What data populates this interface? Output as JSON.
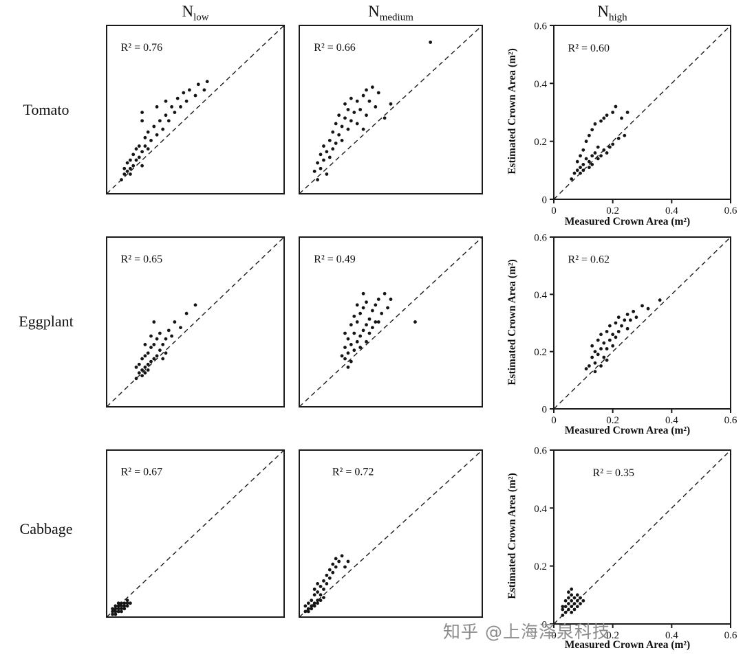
{
  "figure": {
    "watermark": "知乎 @上海泽泉科技"
  },
  "columns": [
    {
      "main": "N",
      "sub": "low"
    },
    {
      "main": "N",
      "sub": "medium"
    },
    {
      "main": "N",
      "sub": "high"
    }
  ],
  "rows": [
    {
      "label": "Tomato"
    },
    {
      "label": "Eggplant"
    },
    {
      "label": "Cabbage"
    }
  ],
  "axis": {
    "x_label": "Measured Crown Area (m²)",
    "y_label": "Estimated Crown Area (m²)",
    "ticks": [
      "0",
      "0.2",
      "0.4",
      "0.6"
    ],
    "range": [
      0,
      0.6
    ]
  },
  "chart_data": [
    {
      "type": "scatter",
      "crop": "Tomato",
      "nitrogen": "N_low",
      "r2": 0.76,
      "r2_label": "R² = 0.76",
      "xlim": [
        0,
        0.6
      ],
      "ylim": [
        0,
        0.6
      ],
      "identity_line": "dashed 1:1",
      "points": [
        [
          0.05,
          0.05
        ],
        [
          0.06,
          0.07
        ],
        [
          0.06,
          0.09
        ],
        [
          0.07,
          0.08
        ],
        [
          0.07,
          0.11
        ],
        [
          0.08,
          0.09
        ],
        [
          0.08,
          0.12
        ],
        [
          0.09,
          0.1
        ],
        [
          0.09,
          0.14
        ],
        [
          0.1,
          0.12
        ],
        [
          0.1,
          0.16
        ],
        [
          0.11,
          0.13
        ],
        [
          0.11,
          0.17
        ],
        [
          0.12,
          0.15
        ],
        [
          0.12,
          0.26
        ],
        [
          0.13,
          0.17
        ],
        [
          0.13,
          0.2
        ],
        [
          0.14,
          0.16
        ],
        [
          0.14,
          0.22
        ],
        [
          0.15,
          0.19
        ],
        [
          0.16,
          0.24
        ],
        [
          0.17,
          0.21
        ],
        [
          0.17,
          0.31
        ],
        [
          0.18,
          0.26
        ],
        [
          0.19,
          0.23
        ],
        [
          0.2,
          0.28
        ],
        [
          0.2,
          0.33
        ],
        [
          0.21,
          0.26
        ],
        [
          0.22,
          0.31
        ],
        [
          0.23,
          0.29
        ],
        [
          0.24,
          0.34
        ],
        [
          0.25,
          0.31
        ],
        [
          0.26,
          0.36
        ],
        [
          0.27,
          0.33
        ],
        [
          0.28,
          0.37
        ],
        [
          0.3,
          0.35
        ],
        [
          0.31,
          0.39
        ],
        [
          0.33,
          0.37
        ],
        [
          0.34,
          0.4
        ],
        [
          0.12,
          0.1
        ],
        [
          0.12,
          0.29
        ],
        [
          0.08,
          0.07
        ]
      ]
    },
    {
      "type": "scatter",
      "crop": "Tomato",
      "nitrogen": "N_medium",
      "r2": 0.66,
      "r2_label": "R² = 0.66",
      "xlim": [
        0,
        0.6
      ],
      "ylim": [
        0,
        0.6
      ],
      "identity_line": "dashed 1:1",
      "points": [
        [
          0.05,
          0.08
        ],
        [
          0.06,
          0.11
        ],
        [
          0.07,
          0.09
        ],
        [
          0.07,
          0.14
        ],
        [
          0.08,
          0.12
        ],
        [
          0.08,
          0.17
        ],
        [
          0.09,
          0.15
        ],
        [
          0.1,
          0.13
        ],
        [
          0.1,
          0.19
        ],
        [
          0.11,
          0.16
        ],
        [
          0.11,
          0.22
        ],
        [
          0.12,
          0.18
        ],
        [
          0.12,
          0.25
        ],
        [
          0.13,
          0.21
        ],
        [
          0.13,
          0.28
        ],
        [
          0.14,
          0.19
        ],
        [
          0.14,
          0.24
        ],
        [
          0.15,
          0.27
        ],
        [
          0.15,
          0.32
        ],
        [
          0.16,
          0.23
        ],
        [
          0.16,
          0.3
        ],
        [
          0.17,
          0.26
        ],
        [
          0.17,
          0.34
        ],
        [
          0.18,
          0.29
        ],
        [
          0.19,
          0.25
        ],
        [
          0.19,
          0.33
        ],
        [
          0.2,
          0.3
        ],
        [
          0.21,
          0.35
        ],
        [
          0.22,
          0.28
        ],
        [
          0.22,
          0.37
        ],
        [
          0.23,
          0.33
        ],
        [
          0.24,
          0.38
        ],
        [
          0.25,
          0.31
        ],
        [
          0.26,
          0.36
        ],
        [
          0.28,
          0.27
        ],
        [
          0.3,
          0.32
        ],
        [
          0.43,
          0.54
        ],
        [
          0.09,
          0.07
        ],
        [
          0.06,
          0.05
        ],
        [
          0.21,
          0.23
        ]
      ]
    },
    {
      "type": "scatter",
      "crop": "Tomato",
      "nitrogen": "N_high",
      "r2": 0.6,
      "r2_label": "R² = 0.60",
      "xlim": [
        0,
        0.6
      ],
      "ylim": [
        0,
        0.6
      ],
      "identity_line": "dashed 1:1",
      "points": [
        [
          0.06,
          0.07
        ],
        [
          0.07,
          0.09
        ],
        [
          0.08,
          0.1
        ],
        [
          0.08,
          0.13
        ],
        [
          0.09,
          0.11
        ],
        [
          0.09,
          0.15
        ],
        [
          0.1,
          0.12
        ],
        [
          0.1,
          0.17
        ],
        [
          0.11,
          0.14
        ],
        [
          0.11,
          0.2
        ],
        [
          0.12,
          0.13
        ],
        [
          0.12,
          0.22
        ],
        [
          0.13,
          0.15
        ],
        [
          0.13,
          0.24
        ],
        [
          0.14,
          0.16
        ],
        [
          0.14,
          0.26
        ],
        [
          0.15,
          0.14
        ],
        [
          0.15,
          0.18
        ],
        [
          0.16,
          0.27
        ],
        [
          0.16,
          0.15
        ],
        [
          0.17,
          0.17
        ],
        [
          0.17,
          0.28
        ],
        [
          0.18,
          0.16
        ],
        [
          0.18,
          0.29
        ],
        [
          0.19,
          0.18
        ],
        [
          0.2,
          0.3
        ],
        [
          0.2,
          0.19
        ],
        [
          0.21,
          0.32
        ],
        [
          0.22,
          0.21
        ],
        [
          0.23,
          0.28
        ],
        [
          0.24,
          0.22
        ],
        [
          0.25,
          0.3
        ],
        [
          0.13,
          0.12
        ],
        [
          0.12,
          0.11
        ],
        [
          0.1,
          0.1
        ],
        [
          0.09,
          0.09
        ]
      ]
    },
    {
      "type": "scatter",
      "crop": "Eggplant",
      "nitrogen": "N_low",
      "r2": 0.65,
      "r2_label": "R² = 0.65",
      "xlim": [
        0,
        0.6
      ],
      "ylim": [
        0,
        0.6
      ],
      "identity_line": "dashed 1:1",
      "points": [
        [
          0.1,
          0.1
        ],
        [
          0.11,
          0.12
        ],
        [
          0.11,
          0.15
        ],
        [
          0.12,
          0.13
        ],
        [
          0.12,
          0.17
        ],
        [
          0.13,
          0.14
        ],
        [
          0.13,
          0.18
        ],
        [
          0.13,
          0.22
        ],
        [
          0.14,
          0.15
        ],
        [
          0.14,
          0.19
        ],
        [
          0.15,
          0.16
        ],
        [
          0.15,
          0.21
        ],
        [
          0.15,
          0.25
        ],
        [
          0.16,
          0.17
        ],
        [
          0.16,
          0.22
        ],
        [
          0.17,
          0.18
        ],
        [
          0.17,
          0.24
        ],
        [
          0.18,
          0.2
        ],
        [
          0.18,
          0.26
        ],
        [
          0.19,
          0.22
        ],
        [
          0.2,
          0.24
        ],
        [
          0.21,
          0.27
        ],
        [
          0.22,
          0.25
        ],
        [
          0.23,
          0.3
        ],
        [
          0.25,
          0.28
        ],
        [
          0.27,
          0.33
        ],
        [
          0.3,
          0.36
        ],
        [
          0.14,
          0.13
        ],
        [
          0.13,
          0.12
        ],
        [
          0.12,
          0.11
        ],
        [
          0.16,
          0.3
        ],
        [
          0.1,
          0.14
        ],
        [
          0.19,
          0.17
        ],
        [
          0.2,
          0.19
        ]
      ]
    },
    {
      "type": "scatter",
      "crop": "Eggplant",
      "nitrogen": "N_medium",
      "r2": 0.49,
      "r2_label": "R² = 0.49",
      "xlim": [
        0,
        0.6
      ],
      "ylim": [
        0,
        0.6
      ],
      "identity_line": "dashed 1:1",
      "points": [
        [
          0.14,
          0.18
        ],
        [
          0.15,
          0.21
        ],
        [
          0.15,
          0.26
        ],
        [
          0.16,
          0.19
        ],
        [
          0.16,
          0.24
        ],
        [
          0.17,
          0.22
        ],
        [
          0.17,
          0.29
        ],
        [
          0.18,
          0.2
        ],
        [
          0.18,
          0.26
        ],
        [
          0.18,
          0.32
        ],
        [
          0.19,
          0.23
        ],
        [
          0.19,
          0.3
        ],
        [
          0.2,
          0.25
        ],
        [
          0.2,
          0.33
        ],
        [
          0.21,
          0.27
        ],
        [
          0.21,
          0.35
        ],
        [
          0.22,
          0.29
        ],
        [
          0.22,
          0.37
        ],
        [
          0.23,
          0.31
        ],
        [
          0.23,
          0.26
        ],
        [
          0.24,
          0.34
        ],
        [
          0.24,
          0.28
        ],
        [
          0.25,
          0.36
        ],
        [
          0.25,
          0.3
        ],
        [
          0.26,
          0.38
        ],
        [
          0.27,
          0.33
        ],
        [
          0.28,
          0.4
        ],
        [
          0.29,
          0.35
        ],
        [
          0.3,
          0.38
        ],
        [
          0.17,
          0.16
        ],
        [
          0.16,
          0.14
        ],
        [
          0.38,
          0.3
        ],
        [
          0.2,
          0.21
        ],
        [
          0.22,
          0.23
        ],
        [
          0.26,
          0.3
        ],
        [
          0.15,
          0.17
        ],
        [
          0.19,
          0.36
        ],
        [
          0.21,
          0.4
        ]
      ]
    },
    {
      "type": "scatter",
      "crop": "Eggplant",
      "nitrogen": "N_high",
      "r2": 0.62,
      "r2_label": "R² = 0.62",
      "xlim": [
        0,
        0.6
      ],
      "ylim": [
        0,
        0.6
      ],
      "identity_line": "dashed 1:1",
      "points": [
        [
          0.12,
          0.15
        ],
        [
          0.13,
          0.18
        ],
        [
          0.13,
          0.22
        ],
        [
          0.14,
          0.16
        ],
        [
          0.14,
          0.2
        ],
        [
          0.15,
          0.19
        ],
        [
          0.15,
          0.24
        ],
        [
          0.16,
          0.21
        ],
        [
          0.16,
          0.26
        ],
        [
          0.17,
          0.18
        ],
        [
          0.17,
          0.23
        ],
        [
          0.18,
          0.21
        ],
        [
          0.18,
          0.27
        ],
        [
          0.19,
          0.24
        ],
        [
          0.19,
          0.29
        ],
        [
          0.2,
          0.22
        ],
        [
          0.2,
          0.26
        ],
        [
          0.21,
          0.25
        ],
        [
          0.21,
          0.3
        ],
        [
          0.22,
          0.27
        ],
        [
          0.22,
          0.32
        ],
        [
          0.23,
          0.29
        ],
        [
          0.24,
          0.31
        ],
        [
          0.25,
          0.28
        ],
        [
          0.25,
          0.33
        ],
        [
          0.26,
          0.31
        ],
        [
          0.27,
          0.34
        ],
        [
          0.28,
          0.32
        ],
        [
          0.3,
          0.36
        ],
        [
          0.32,
          0.35
        ],
        [
          0.14,
          0.13
        ],
        [
          0.16,
          0.15
        ],
        [
          0.36,
          0.38
        ],
        [
          0.11,
          0.14
        ],
        [
          0.18,
          0.17
        ]
      ]
    },
    {
      "type": "scatter",
      "crop": "Cabbage",
      "nitrogen": "N_low",
      "r2": 0.67,
      "r2_label": "R² = 0.67",
      "xlim": [
        0,
        0.6
      ],
      "ylim": [
        0,
        0.6
      ],
      "identity_line": "dashed 1:1",
      "points": [
        [
          0.02,
          0.01
        ],
        [
          0.02,
          0.02
        ],
        [
          0.03,
          0.02
        ],
        [
          0.03,
          0.03
        ],
        [
          0.03,
          0.01
        ],
        [
          0.04,
          0.02
        ],
        [
          0.04,
          0.03
        ],
        [
          0.04,
          0.04
        ],
        [
          0.05,
          0.03
        ],
        [
          0.05,
          0.04
        ],
        [
          0.05,
          0.02
        ],
        [
          0.06,
          0.04
        ],
        [
          0.06,
          0.05
        ],
        [
          0.06,
          0.03
        ],
        [
          0.07,
          0.05
        ],
        [
          0.07,
          0.04
        ],
        [
          0.02,
          0.03
        ],
        [
          0.03,
          0.04
        ],
        [
          0.04,
          0.05
        ],
        [
          0.05,
          0.05
        ],
        [
          0.08,
          0.05
        ],
        [
          0.07,
          0.06
        ]
      ]
    },
    {
      "type": "scatter",
      "crop": "Cabbage",
      "nitrogen": "N_medium",
      "r2": 0.72,
      "r2_label": "R² = 0.72",
      "r2_fx": 0.18,
      "xlim": [
        0,
        0.6
      ],
      "ylim": [
        0,
        0.6
      ],
      "identity_line": "dashed 1:1",
      "points": [
        [
          0.02,
          0.02
        ],
        [
          0.03,
          0.03
        ],
        [
          0.03,
          0.05
        ],
        [
          0.04,
          0.04
        ],
        [
          0.04,
          0.06
        ],
        [
          0.05,
          0.05
        ],
        [
          0.05,
          0.08
        ],
        [
          0.06,
          0.06
        ],
        [
          0.06,
          0.09
        ],
        [
          0.07,
          0.08
        ],
        [
          0.07,
          0.11
        ],
        [
          0.08,
          0.1
        ],
        [
          0.08,
          0.13
        ],
        [
          0.09,
          0.12
        ],
        [
          0.09,
          0.15
        ],
        [
          0.1,
          0.14
        ],
        [
          0.1,
          0.17
        ],
        [
          0.11,
          0.16
        ],
        [
          0.11,
          0.19
        ],
        [
          0.12,
          0.18
        ],
        [
          0.12,
          0.21
        ],
        [
          0.13,
          0.2
        ],
        [
          0.14,
          0.22
        ],
        [
          0.02,
          0.04
        ],
        [
          0.03,
          0.02
        ],
        [
          0.04,
          0.03
        ],
        [
          0.05,
          0.04
        ],
        [
          0.06,
          0.05
        ],
        [
          0.07,
          0.06
        ],
        [
          0.08,
          0.07
        ],
        [
          0.15,
          0.18
        ],
        [
          0.16,
          0.2
        ],
        [
          0.05,
          0.1
        ],
        [
          0.06,
          0.12
        ]
      ]
    },
    {
      "type": "scatter",
      "crop": "Cabbage",
      "nitrogen": "N_high",
      "r2": 0.35,
      "r2_label": "R² = 0.35",
      "r2_fx": 0.22,
      "xlim": [
        0,
        0.6
      ],
      "ylim": [
        0,
        0.6
      ],
      "identity_line": "dashed 1:1",
      "points": [
        [
          0.03,
          0.03
        ],
        [
          0.03,
          0.05
        ],
        [
          0.04,
          0.04
        ],
        [
          0.04,
          0.06
        ],
        [
          0.05,
          0.05
        ],
        [
          0.05,
          0.07
        ],
        [
          0.05,
          0.09
        ],
        [
          0.06,
          0.06
        ],
        [
          0.06,
          0.08
        ],
        [
          0.06,
          0.1
        ],
        [
          0.07,
          0.07
        ],
        [
          0.07,
          0.09
        ],
        [
          0.08,
          0.08
        ],
        [
          0.08,
          0.1
        ],
        [
          0.09,
          0.09
        ],
        [
          0.04,
          0.08
        ],
        [
          0.05,
          0.11
        ],
        [
          0.06,
          0.04
        ],
        [
          0.07,
          0.05
        ],
        [
          0.08,
          0.06
        ],
        [
          0.09,
          0.07
        ],
        [
          0.1,
          0.08
        ],
        [
          0.03,
          0.06
        ],
        [
          0.06,
          0.12
        ]
      ]
    }
  ]
}
